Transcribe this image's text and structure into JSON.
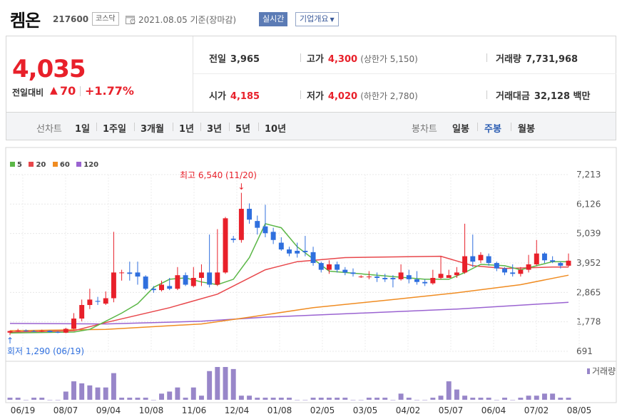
{
  "header": {
    "name": "켐온",
    "code": "217600",
    "market": "코스닥",
    "date": "2021.08.05 기준(장마감)",
    "realtime_btn": "실시간",
    "overview_btn": "기업개요"
  },
  "summary": {
    "price": "4,035",
    "change_label": "전일대비",
    "change": "70",
    "change_pct": "+1.77%",
    "prev_label": "전일",
    "prev": "3,965",
    "high_label": "고가",
    "high": "4,300",
    "upper_limit": "(상한가 5,150)",
    "volume_label": "거래량",
    "volume": "7,731,968",
    "open_label": "시가",
    "open": "4,185",
    "low_label": "저가",
    "low": "4,020",
    "lower_limit": "(하한가 2,780)",
    "amount_label": "거래대금",
    "amount": "32,128 백만"
  },
  "tabs": {
    "line_label": "선차트",
    "line_periods": [
      "1일",
      "1주일",
      "3개월",
      "1년",
      "3년",
      "5년",
      "10년"
    ],
    "candle_label": "봉차트",
    "candle_periods": [
      "일봉",
      "주봉",
      "월봉"
    ],
    "active_candle": "주봉"
  },
  "colors": {
    "up": "#e8202a",
    "down": "#2f6fde",
    "ma5": "#5bb747",
    "ma20": "#e8474b",
    "ma60": "#f08c22",
    "ma120": "#9a63d1",
    "volume": "#9886c9",
    "accent": "#5b7bb5"
  },
  "chart_data": {
    "type": "candlestick",
    "legend": [
      {
        "name": "5",
        "color": "#5bb747"
      },
      {
        "name": "20",
        "color": "#e8474b"
      },
      {
        "name": "60",
        "color": "#f08c22"
      },
      {
        "name": "120",
        "color": "#9a63d1"
      }
    ],
    "volume_label": "거래량",
    "high_note": "최고 6,540 (11/20)",
    "low_note": "회저 1,290 (06/19)",
    "y_ticks": [
      "7,213",
      "6,126",
      "5,039",
      "3,952",
      "2,865",
      "1,778",
      "691"
    ],
    "y_range": [
      691,
      7213
    ],
    "x_ticks": [
      "06/19",
      "08/07",
      "09/04",
      "10/08",
      "11/06",
      "12/04",
      "01/08",
      "02/05",
      "03/05",
      "04/02",
      "05/07",
      "06/04",
      "07/02",
      "08/05"
    ],
    "candles": [
      [
        1380,
        1440,
        1290,
        1460
      ],
      [
        1440,
        1460,
        1420,
        1520
      ],
      [
        1460,
        1440,
        1420,
        1500
      ],
      [
        1440,
        1420,
        1400,
        1480
      ],
      [
        1420,
        1450,
        1400,
        1490
      ],
      [
        1450,
        1400,
        1380,
        1470
      ],
      [
        1400,
        1380,
        1360,
        1440
      ],
      [
        1380,
        1520,
        1360,
        1560
      ],
      [
        1520,
        1900,
        1500,
        2100
      ],
      [
        1900,
        2400,
        1800,
        2600
      ],
      [
        2400,
        2600,
        2250,
        3000
      ],
      [
        2550,
        2520,
        2400,
        2700
      ],
      [
        2450,
        2650,
        2400,
        2900
      ],
      [
        2650,
        3600,
        2500,
        5100
      ],
      [
        3600,
        3600,
        3300,
        3700
      ],
      [
        3600,
        3550,
        3300,
        4000
      ],
      [
        3600,
        3450,
        3150,
        4000
      ],
      [
        3450,
        3000,
        2950,
        3500
      ],
      [
        3000,
        2950,
        2850,
        3100
      ],
      [
        2950,
        3150,
        2900,
        3300
      ],
      [
        3100,
        3000,
        2950,
        3400
      ],
      [
        3000,
        3500,
        2950,
        3800
      ],
      [
        3500,
        3150,
        3100,
        3600
      ],
      [
        3100,
        3400,
        3050,
        3800
      ],
      [
        3400,
        3600,
        3100,
        3900
      ],
      [
        3600,
        3150,
        3050,
        5000
      ],
      [
        3150,
        3600,
        3100,
        5200
      ],
      [
        3600,
        5600,
        3550,
        5650
      ],
      [
        4850,
        4800,
        4700,
        4950
      ],
      [
        4800,
        5950,
        4700,
        6540
      ],
      [
        5950,
        5550,
        5400,
        6150
      ],
      [
        5500,
        5250,
        5000,
        5700
      ],
      [
        5300,
        5050,
        4900,
        6100
      ],
      [
        5100,
        4800,
        4650,
        5250
      ],
      [
        4700,
        4450,
        4400,
        4900
      ],
      [
        4450,
        4300,
        4200,
        4550
      ],
      [
        4400,
        4300,
        4150,
        4700
      ],
      [
        4400,
        4350,
        4200,
        4950
      ],
      [
        4350,
        3950,
        3850,
        4550
      ],
      [
        3950,
        3700,
        3600,
        4000
      ],
      [
        3700,
        3900,
        3550,
        4050
      ],
      [
        3900,
        3700,
        3600,
        4000
      ],
      [
        3700,
        3600,
        3500,
        3800
      ],
      [
        3600,
        3550,
        3450,
        3750
      ],
      [
        3450,
        3450,
        3400,
        3500
      ],
      [
        3450,
        3450,
        3350,
        3650
      ],
      [
        3450,
        3400,
        3250,
        3600
      ],
      [
        3400,
        3350,
        3250,
        3550
      ],
      [
        3400,
        3350,
        3050,
        3500
      ],
      [
        3350,
        3600,
        3300,
        3900
      ],
      [
        3500,
        3350,
        3200,
        3700
      ],
      [
        3350,
        3250,
        3150,
        3650
      ],
      [
        3250,
        3200,
        3100,
        3350
      ],
      [
        3200,
        3400,
        3150,
        3700
      ],
      [
        3400,
        3550,
        3350,
        4200
      ],
      [
        3400,
        3500,
        3450,
        3700
      ],
      [
        3500,
        3600,
        3400,
        3800
      ],
      [
        3600,
        4200,
        3550,
        5400
      ],
      [
        4200,
        4000,
        3800,
        5000
      ],
      [
        4050,
        4250,
        3950,
        4350
      ],
      [
        4200,
        3950,
        3850,
        4300
      ],
      [
        3950,
        3750,
        3650,
        4000
      ],
      [
        3750,
        3600,
        3500,
        3800
      ],
      [
        3600,
        3550,
        3450,
        3900
      ],
      [
        3550,
        3700,
        3450,
        3800
      ],
      [
        3700,
        3900,
        3600,
        4250
      ],
      [
        3900,
        4300,
        3850,
        4800
      ],
      [
        4300,
        4050,
        3950,
        4350
      ],
      [
        4050,
        4000,
        3950,
        4200
      ],
      [
        3950,
        3850,
        3750,
        4000
      ],
      [
        3850,
        4035,
        3800,
        4300
      ]
    ],
    "ma": {
      "5": [
        [
          1370,
          0
        ],
        [
          1400,
          8
        ],
        [
          1500,
          10
        ],
        [
          1800,
          12
        ],
        [
          2100,
          14
        ],
        [
          2450,
          16
        ],
        [
          3050,
          18
        ],
        [
          3350,
          20
        ],
        [
          3400,
          22
        ],
        [
          3250,
          24
        ],
        [
          3150,
          26
        ],
        [
          3350,
          28
        ],
        [
          4150,
          30
        ],
        [
          5400,
          32
        ],
        [
          5250,
          34
        ],
        [
          4550,
          36
        ],
        [
          4100,
          38
        ],
        [
          3650,
          40
        ],
        [
          3550,
          44
        ],
        [
          3450,
          48
        ],
        [
          3350,
          52
        ],
        [
          3350,
          55
        ],
        [
          3600,
          57
        ],
        [
          3900,
          59
        ],
        [
          3850,
          62
        ],
        [
          3700,
          64
        ],
        [
          3850,
          66
        ],
        [
          4000,
          68
        ],
        [
          4000,
          70
        ]
      ],
      "20": [
        [
          1400,
          0
        ],
        [
          1450,
          8
        ],
        [
          1750,
          12
        ],
        [
          2300,
          20
        ],
        [
          2800,
          26
        ],
        [
          3700,
          32
        ],
        [
          4000,
          36
        ],
        [
          4150,
          42
        ],
        [
          4200,
          54
        ],
        [
          3850,
          58
        ],
        [
          3750,
          62
        ],
        [
          3800,
          68
        ],
        [
          3800,
          70
        ]
      ],
      "60": [
        [
          1450,
          0
        ],
        [
          1500,
          12
        ],
        [
          1700,
          24
        ],
        [
          1950,
          30
        ],
        [
          2300,
          38
        ],
        [
          2600,
          48
        ],
        [
          2850,
          56
        ],
        [
          3150,
          64
        ],
        [
          3500,
          70
        ]
      ],
      "120": [
        [
          1720,
          0
        ],
        [
          1700,
          12
        ],
        [
          1800,
          24
        ],
        [
          1950,
          32
        ],
        [
          2100,
          44
        ],
        [
          2250,
          56
        ],
        [
          2500,
          70
        ]
      ]
    },
    "volume": [
      1,
      1,
      0,
      1,
      1,
      0,
      0,
      4,
      9,
      8,
      7,
      6,
      6,
      13,
      1,
      1,
      1,
      1,
      0,
      3,
      4,
      6,
      1,
      6,
      2,
      14,
      16,
      16,
      15,
      2,
      2,
      1,
      1,
      1,
      1,
      1,
      0,
      0,
      1,
      1,
      1,
      1,
      1,
      0,
      0,
      1,
      1,
      1,
      0,
      3,
      1,
      0,
      0,
      1,
      2,
      9,
      5,
      2,
      1,
      1,
      1,
      0,
      1,
      0,
      1,
      2,
      2,
      3,
      3,
      1,
      1
    ]
  }
}
